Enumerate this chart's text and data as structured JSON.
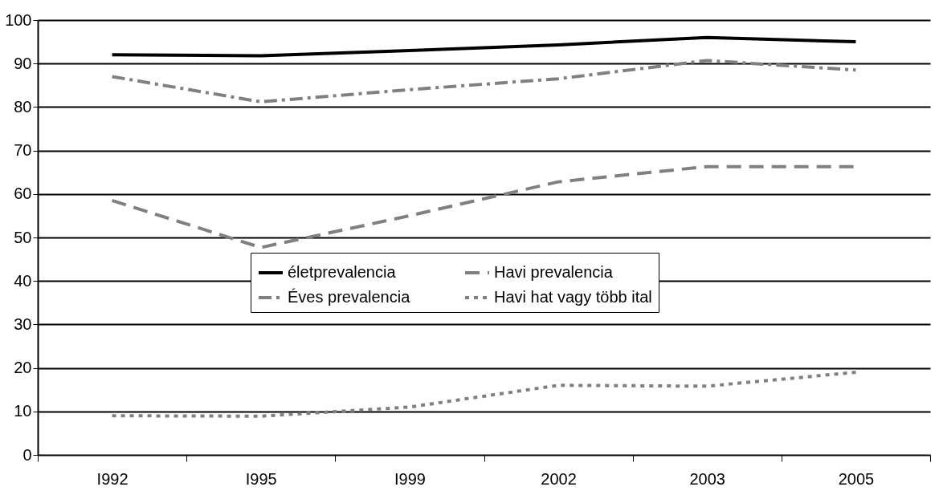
{
  "chart_data": {
    "type": "line",
    "categories": [
      "I992",
      "I995",
      "I999",
      "2002",
      "2003",
      "2005"
    ],
    "series": [
      {
        "name": "életprevalencia",
        "color": "#000000",
        "line_style": "solid",
        "values": [
          92,
          91.8,
          93,
          94.3,
          96,
          95
        ]
      },
      {
        "name": "Éves prevalencia",
        "color": "#808080",
        "line_style": "dashdot",
        "values": [
          87,
          81.2,
          84,
          86.5,
          90.7,
          88.5
        ]
      },
      {
        "name": "Havi prevalencia",
        "color": "#808080",
        "line_style": "dashed",
        "values": [
          58.5,
          47.7,
          55,
          62.8,
          66.3,
          66.3
        ]
      },
      {
        "name": "Havi hat vagy több ital",
        "color": "#808080",
        "line_style": "dotted",
        "values": [
          9,
          8.9,
          11,
          16,
          15.8,
          19
        ]
      }
    ],
    "ylim": [
      0,
      100
    ],
    "yticks": [
      0,
      10,
      20,
      30,
      40,
      50,
      60,
      70,
      80,
      90,
      100
    ],
    "grid": "y",
    "legend": "center",
    "marker": "none"
  }
}
